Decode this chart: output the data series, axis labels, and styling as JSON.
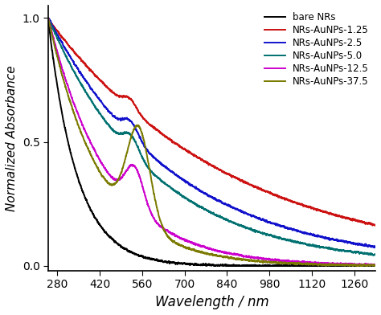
{
  "title": "",
  "xlabel": "Wavelength / nm",
  "ylabel": "Normalized Absorbance",
  "xlim": [
    250,
    1330
  ],
  "ylim": [
    -0.02,
    1.05
  ],
  "xticks": [
    280,
    420,
    560,
    700,
    840,
    980,
    1120,
    1260
  ],
  "yticks": [
    0.0,
    0.5,
    1.0
  ],
  "series": [
    {
      "label": "bare NRs",
      "color": "#000000",
      "lw": 1.4
    },
    {
      "label": "NRs-AuNPs-1.25",
      "color": "#cc1111",
      "lw": 1.4
    },
    {
      "label": "NRs-AuNPs-2.5",
      "color": "#1111cc",
      "lw": 1.4
    },
    {
      "label": "NRs-AuNPs-5.0",
      "color": "#007070",
      "lw": 1.4
    },
    {
      "label": "NRs-AuNPs-12.5",
      "color": "#cc00cc",
      "lw": 1.4
    },
    {
      "label": "NRs-AuNPs-37.5",
      "color": "#7a7a00",
      "lw": 1.4
    }
  ],
  "legend_loc": "upper right",
  "legend_fontsize": 8.5,
  "xlabel_fontsize": 12,
  "ylabel_fontsize": 11,
  "tick_fontsize": 10,
  "background_color": "#ffffff"
}
